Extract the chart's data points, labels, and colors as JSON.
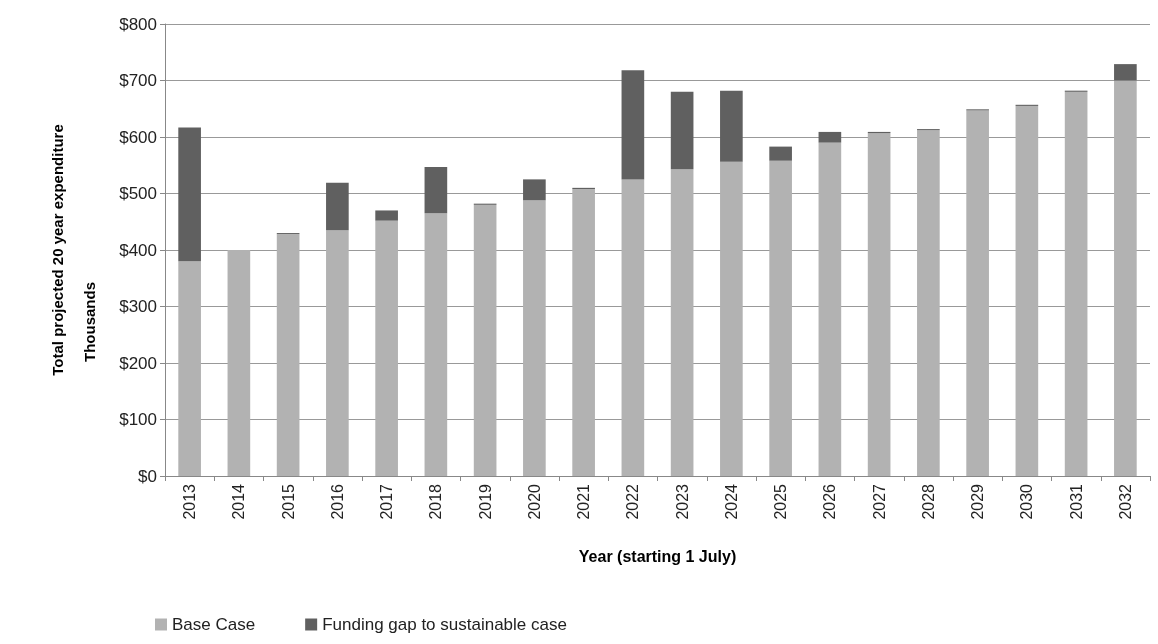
{
  "chart_data": {
    "type": "bar",
    "stacked": true,
    "xlabel": "Year (starting 1 July)",
    "ylabel": "Total projected 20 year expenditure",
    "annotations": [
      "Thousands"
    ],
    "categories": [
      "2013",
      "2014",
      "2015",
      "2016",
      "2017",
      "2018",
      "2019",
      "2020",
      "2021",
      "2022",
      "2023",
      "2024",
      "2025",
      "2026",
      "2027",
      "2028",
      "2029",
      "2030",
      "2031",
      "2032"
    ],
    "series": [
      {
        "name": "Base Case",
        "color": "#b2b2b2",
        "values": [
          380,
          400,
          428,
          435,
          452,
          465,
          480,
          488,
          508,
          525,
          543,
          556,
          558,
          590,
          607,
          612,
          647,
          655,
          680,
          700
        ]
      },
      {
        "name": "Funding gap to sustainable case",
        "color": "#606060",
        "values": [
          237,
          0,
          2,
          84,
          18,
          82,
          2,
          37,
          2,
          193,
          137,
          126,
          25,
          19,
          2,
          2,
          2,
          2,
          2,
          29
        ]
      }
    ],
    "ylim": [
      0,
      800
    ],
    "yticks": [
      {
        "value": 0,
        "label": "$0"
      },
      {
        "value": 100,
        "label": "$100"
      },
      {
        "value": 200,
        "label": "$200"
      },
      {
        "value": 300,
        "label": "$300"
      },
      {
        "value": 400,
        "label": "$400"
      },
      {
        "value": 500,
        "label": "$500"
      },
      {
        "value": 600,
        "label": "$600"
      },
      {
        "value": 700,
        "label": "$700"
      },
      {
        "value": 800,
        "label": "$800"
      }
    ],
    "grid": "y",
    "legend": "bottom left"
  }
}
